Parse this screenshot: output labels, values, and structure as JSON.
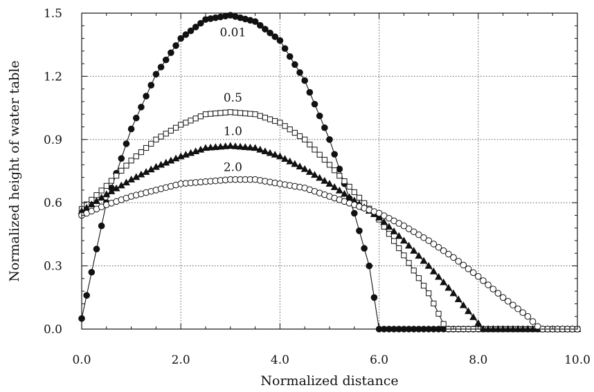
{
  "chart_data": {
    "type": "line",
    "title": "",
    "xlabel": "Normalized distance",
    "ylabel": "Normalized height of water table",
    "xlim": [
      0,
      10
    ],
    "ylim": [
      0,
      1.5
    ],
    "x_ticks": [
      0,
      2,
      4,
      6,
      8,
      10
    ],
    "x_tick_labels": [
      "0.0",
      "2.0",
      "4.0",
      "6.0",
      "8.0",
      "10.0"
    ],
    "y_ticks": [
      0,
      0.3,
      0.6,
      0.9,
      1.2,
      1.5
    ],
    "y_tick_labels": [
      "0.0",
      "0.3",
      "0.6",
      "0.9",
      "1.2",
      "1.5"
    ],
    "grid": true,
    "legend": "none (curves labeled inline)",
    "series": [
      {
        "name": "0.01",
        "marker": "filled-circle",
        "points": [
          [
            0,
            0.05
          ],
          [
            0.5,
            0.6
          ],
          [
            1.0,
            0.95
          ],
          [
            1.5,
            1.21
          ],
          [
            2.0,
            1.38
          ],
          [
            2.5,
            1.47
          ],
          [
            3.0,
            1.49
          ],
          [
            3.5,
            1.46
          ],
          [
            4.0,
            1.37
          ],
          [
            4.5,
            1.18
          ],
          [
            5.0,
            0.9
          ],
          [
            5.5,
            0.55
          ],
          [
            5.8,
            0.3
          ],
          [
            6.0,
            0.0
          ],
          [
            10.0,
            0.0
          ]
        ]
      },
      {
        "name": "0.5",
        "marker": "open-square",
        "points": [
          [
            0,
            0.57
          ],
          [
            0.5,
            0.68
          ],
          [
            1.0,
            0.8
          ],
          [
            1.5,
            0.9
          ],
          [
            2.0,
            0.97
          ],
          [
            2.5,
            1.02
          ],
          [
            3.0,
            1.03
          ],
          [
            3.5,
            1.02
          ],
          [
            4.0,
            0.98
          ],
          [
            4.5,
            0.9
          ],
          [
            5.0,
            0.78
          ],
          [
            5.5,
            0.65
          ],
          [
            6.0,
            0.52
          ],
          [
            6.5,
            0.35
          ],
          [
            7.0,
            0.17
          ],
          [
            7.35,
            0.0
          ],
          [
            10.0,
            0.0
          ]
        ]
      },
      {
        "name": "1.0",
        "marker": "filled-triangle",
        "points": [
          [
            0,
            0.56
          ],
          [
            0.5,
            0.64
          ],
          [
            1.0,
            0.71
          ],
          [
            1.5,
            0.77
          ],
          [
            2.0,
            0.82
          ],
          [
            2.5,
            0.86
          ],
          [
            3.0,
            0.87
          ],
          [
            3.5,
            0.86
          ],
          [
            4.0,
            0.82
          ],
          [
            4.5,
            0.76
          ],
          [
            5.0,
            0.69
          ],
          [
            5.5,
            0.61
          ],
          [
            6.0,
            0.53
          ],
          [
            6.5,
            0.42
          ],
          [
            7.0,
            0.3
          ],
          [
            7.5,
            0.17
          ],
          [
            8.1,
            0.0
          ],
          [
            10.0,
            0.0
          ]
        ]
      },
      {
        "name": "2.0",
        "marker": "open-circle",
        "points": [
          [
            0,
            0.54
          ],
          [
            0.5,
            0.59
          ],
          [
            1.0,
            0.63
          ],
          [
            1.5,
            0.66
          ],
          [
            2.0,
            0.69
          ],
          [
            2.5,
            0.7
          ],
          [
            3.0,
            0.71
          ],
          [
            3.5,
            0.71
          ],
          [
            4.0,
            0.69
          ],
          [
            4.5,
            0.67
          ],
          [
            5.0,
            0.63
          ],
          [
            5.5,
            0.59
          ],
          [
            6.0,
            0.55
          ],
          [
            6.5,
            0.49
          ],
          [
            7.0,
            0.42
          ],
          [
            7.5,
            0.34
          ],
          [
            8.0,
            0.25
          ],
          [
            8.5,
            0.15
          ],
          [
            9.0,
            0.06
          ],
          [
            9.25,
            0.0
          ],
          [
            10.0,
            0.0
          ]
        ]
      }
    ],
    "curve_labels": [
      {
        "text": "0.01",
        "x": 3.05,
        "y": 1.39
      },
      {
        "text": "0.5",
        "x": 3.05,
        "y": 1.08
      },
      {
        "text": "1.0",
        "x": 3.05,
        "y": 0.92
      },
      {
        "text": "2.0",
        "x": 3.05,
        "y": 0.75
      }
    ]
  }
}
